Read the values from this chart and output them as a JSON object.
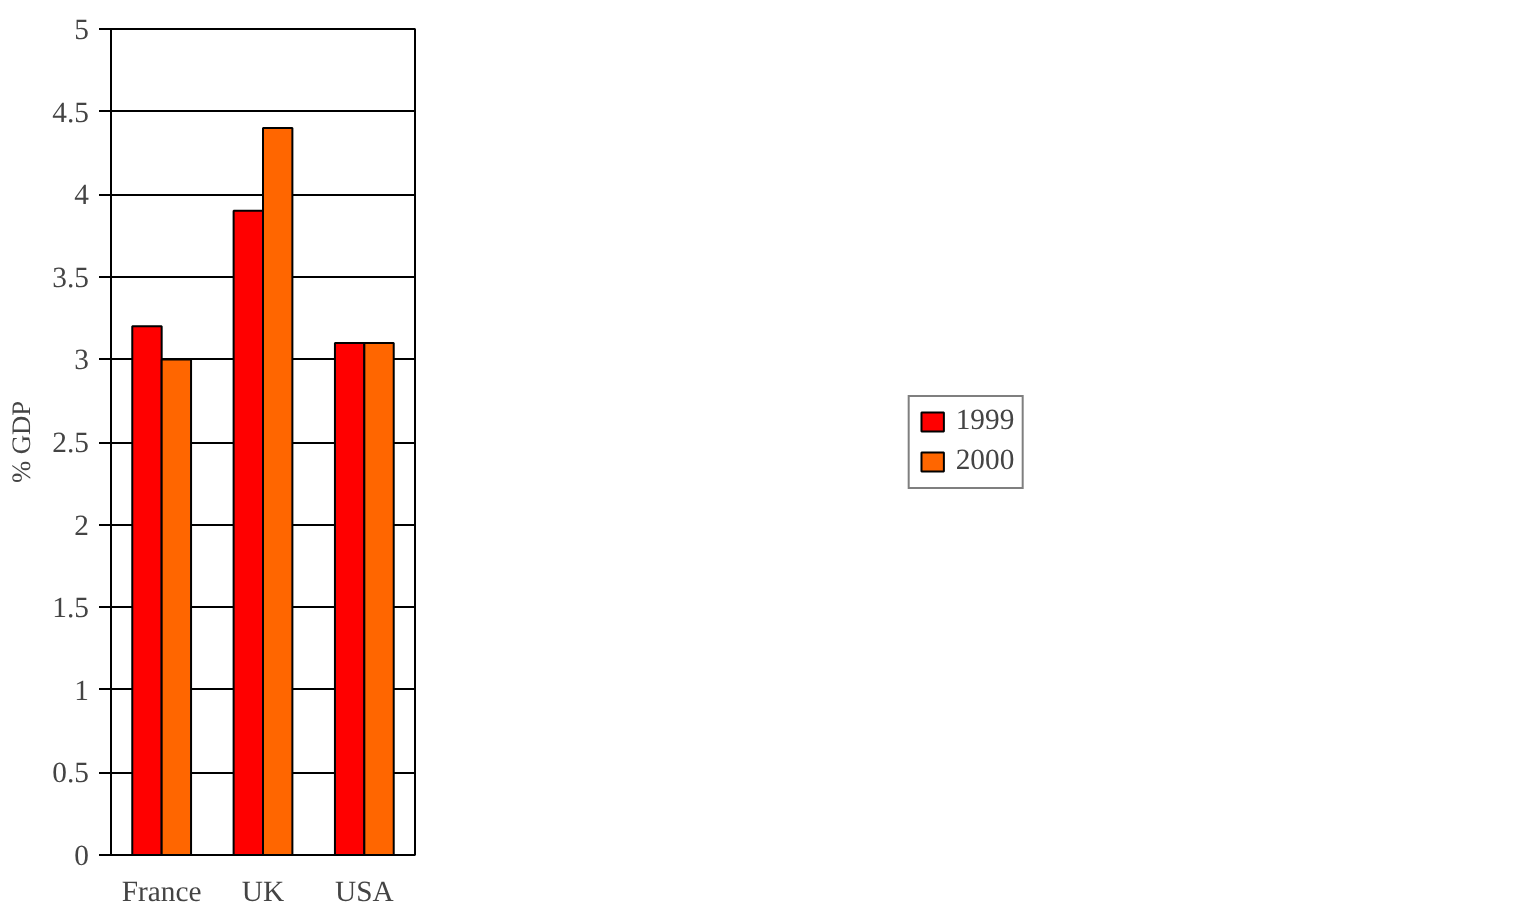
{
  "chart_data": {
    "type": "bar",
    "ylabel": "% GDP",
    "categories": [
      "France",
      "UK",
      "USA"
    ],
    "series": [
      {
        "name": "1999",
        "color": "#ff0000",
        "values": [
          3.2,
          3.9,
          3.1
        ]
      },
      {
        "name": "2000",
        "color": "#ff6600",
        "values": [
          3.0,
          4.4,
          3.1
        ]
      }
    ],
    "ylim": [
      0,
      5
    ],
    "yticks": [
      0,
      0.5,
      1,
      1.5,
      2,
      2.5,
      3,
      3.5,
      4,
      4.5,
      5
    ],
    "grid": "y",
    "legend": "right"
  }
}
